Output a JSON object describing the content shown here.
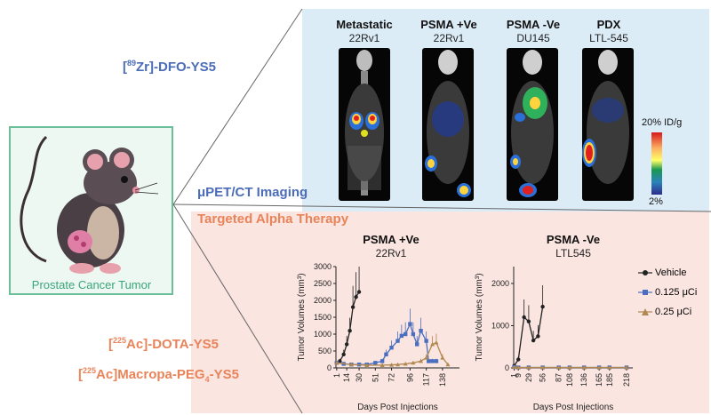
{
  "imaging_agent": {
    "prefix_sup": "89",
    "isotope": "Zr",
    "name": "]-DFO-YS5"
  },
  "imaging_modality": "μPET/CT Imaging",
  "therapy_label": "Targeted Alpha Therapy",
  "therapy_agents": [
    {
      "sup": "225",
      "isotope": "Ac",
      "name": "]-DOTA-YS5"
    },
    {
      "sup": "225",
      "isotope": "Ac",
      "name": "]Macropa-PEG",
      "sub": "4",
      "suffix": "-YS5"
    }
  ],
  "mouse_caption": "Prostate Cancer Tumor",
  "scans": [
    {
      "title": "Metastatic",
      "subtitle": "22Rv1"
    },
    {
      "title": "PSMA +Ve",
      "subtitle": "22Rv1"
    },
    {
      "title": "PSMA -Ve",
      "subtitle": "DU145"
    },
    {
      "title": "PDX",
      "subtitle": "LTL-545"
    }
  ],
  "colorbar": {
    "max_label": "20% ID/g",
    "min_label": "2%",
    "colors": [
      "#d7191c",
      "#fdae61",
      "#ffff66",
      "#1a9850",
      "#2b83ba",
      "#2c2c8c"
    ]
  },
  "charts": [
    {
      "title": "PSMA +Ve",
      "subtitle": "22Rv1",
      "ylabel": "Tumor Volumes (mm³)",
      "xlabel": "Days Post Injections",
      "yticks": [
        "0",
        "500",
        "1000",
        "1500",
        "2000",
        "2500",
        "3000"
      ],
      "xticks": [
        "1",
        "14",
        "30",
        "51",
        "72",
        "96",
        "117",
        "138"
      ]
    },
    {
      "title": "PSMA -Ve",
      "subtitle": "LTL545",
      "ylabel": "Tumor Volumes (mm³)",
      "xlabel": "Days Post Injections",
      "yticks": [
        "0",
        "1000",
        "2000"
      ],
      "xticks": [
        "1",
        "9",
        "29",
        "56",
        "87",
        "108",
        "136",
        "165",
        "185",
        "218"
      ]
    }
  ],
  "legend": [
    {
      "label": "Vehicle",
      "color": "#222222",
      "marker": "circle"
    },
    {
      "label": "0.125 μCi",
      "color": "#4a6fc1",
      "marker": "square"
    },
    {
      "label": "0.25 μCi",
      "color": "#b08850",
      "marker": "triangle"
    }
  ],
  "chart_data": [
    {
      "type": "line",
      "title": "PSMA +Ve",
      "subtitle": "22Rv1",
      "xlabel": "Days Post Injections",
      "ylabel": "Tumor Volumes (mm³)",
      "xlim": [
        0,
        160
      ],
      "ylim": [
        0,
        3000
      ],
      "series": [
        {
          "name": "Vehicle",
          "x": [
            1,
            5,
            10,
            14,
            18,
            22,
            26,
            30
          ],
          "values": [
            150,
            200,
            400,
            700,
            1100,
            1800,
            2100,
            2250
          ]
        },
        {
          "name": "0.125 μCi",
          "x": [
            1,
            10,
            20,
            30,
            40,
            51,
            60,
            65,
            72,
            80,
            85,
            90,
            96,
            100,
            105,
            110,
            117,
            120,
            125,
            130
          ],
          "values": [
            150,
            120,
            100,
            100,
            100,
            150,
            200,
            400,
            600,
            800,
            950,
            1000,
            1300,
            1000,
            700,
            1100,
            800,
            200,
            200,
            200
          ]
        },
        {
          "name": "0.25 μCi",
          "x": [
            1,
            20,
            40,
            60,
            72,
            80,
            90,
            100,
            110,
            117,
            125,
            130,
            138,
            145
          ],
          "values": [
            150,
            100,
            80,
            80,
            90,
            100,
            120,
            150,
            200,
            300,
            700,
            750,
            300,
            100
          ]
        }
      ]
    },
    {
      "type": "line",
      "title": "PSMA -Ve",
      "subtitle": "LTL545",
      "xlabel": "Days Post Injections",
      "ylabel": "Tumor Volumes (mm³)",
      "xlim": [
        0,
        230
      ],
      "ylim": [
        0,
        2400
      ],
      "series": [
        {
          "name": "Vehicle",
          "x": [
            1,
            9,
            20,
            29,
            38,
            47,
            56
          ],
          "values": [
            50,
            200,
            1200,
            1100,
            650,
            750,
            1450
          ]
        },
        {
          "name": "0.125 μCi",
          "x": [
            1,
            9,
            29,
            56,
            87,
            108,
            136,
            165,
            185,
            218
          ],
          "values": [
            20,
            10,
            10,
            10,
            10,
            10,
            10,
            10,
            10,
            10
          ]
        },
        {
          "name": "0.25 μCi",
          "x": [
            1,
            9,
            29,
            56,
            87,
            108,
            136,
            165,
            185,
            218
          ],
          "values": [
            20,
            10,
            10,
            10,
            10,
            10,
            10,
            10,
            10,
            10
          ]
        }
      ]
    }
  ]
}
